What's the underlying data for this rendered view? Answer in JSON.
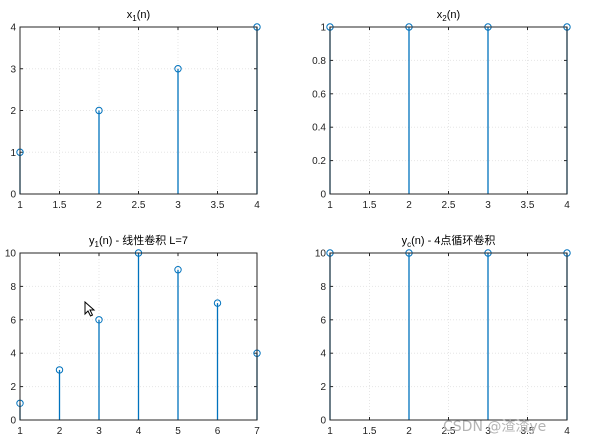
{
  "colors": {
    "stem": "#0072bd",
    "axis": "#262626",
    "grid": "#e6e6e6",
    "watermark": "#b4b4b4"
  },
  "watermark": "CSDN @渣渣ye",
  "chart_data": [
    {
      "type": "stem",
      "title": {
        "base": "x",
        "sub": "1",
        "rest": "(n)"
      },
      "x": [
        1,
        2,
        3,
        4
      ],
      "y": [
        1,
        2,
        3,
        4
      ],
      "xlim": [
        1,
        4
      ],
      "ylim": [
        0,
        4
      ],
      "xticks": [
        "1",
        "1.5",
        "2",
        "2.5",
        "3",
        "3.5",
        "4"
      ],
      "yticks": [
        "0",
        "1",
        "2",
        "3",
        "4"
      ],
      "grid": "on"
    },
    {
      "type": "stem",
      "title": {
        "base": "x",
        "sub": "2",
        "rest": "(n)"
      },
      "x": [
        1,
        2,
        3,
        4
      ],
      "y": [
        1,
        1,
        1,
        1
      ],
      "xlim": [
        1,
        4
      ],
      "ylim": [
        0,
        1
      ],
      "xticks": [
        "1",
        "1.5",
        "2",
        "2.5",
        "3",
        "3.5",
        "4"
      ],
      "yticks": [
        "0",
        "0.2",
        "0.4",
        "0.6",
        "0.8",
        "1"
      ],
      "grid": "on"
    },
    {
      "type": "stem",
      "title": {
        "base": "y",
        "sub": "1",
        "rest": "(n) - 线性卷积 L=7"
      },
      "x": [
        1,
        2,
        3,
        4,
        5,
        6,
        7
      ],
      "y": [
        1,
        3,
        6,
        10,
        9,
        7,
        4
      ],
      "xlim": [
        1,
        7
      ],
      "ylim": [
        0,
        10
      ],
      "xticks": [
        "1",
        "2",
        "3",
        "4",
        "5",
        "6",
        "7"
      ],
      "yticks": [
        "0",
        "2",
        "4",
        "6",
        "8",
        "10"
      ],
      "grid": "on"
    },
    {
      "type": "stem",
      "title": {
        "base": "y",
        "sub": "c",
        "rest": "(n) - 4点循环卷积"
      },
      "x": [
        1,
        2,
        3,
        4
      ],
      "y": [
        10,
        10,
        10,
        10
      ],
      "xlim": [
        1,
        4
      ],
      "ylim": [
        0,
        10
      ],
      "xticks": [
        "1",
        "1.5",
        "2",
        "2.5",
        "3",
        "3.5",
        "4"
      ],
      "yticks": [
        "0",
        "2",
        "4",
        "6",
        "8",
        "10"
      ],
      "grid": "on"
    }
  ]
}
